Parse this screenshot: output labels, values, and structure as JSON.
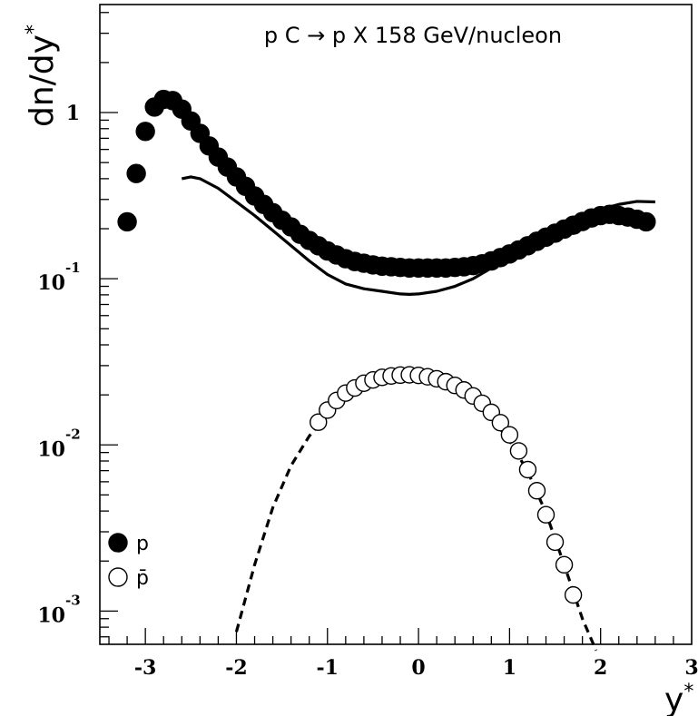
{
  "chart_data": {
    "type": "scatter",
    "title": "p C → p X 158 GeV/nucleon",
    "xlabel": "y*",
    "ylabel": "dn/dy*",
    "xlim": [
      -3.5,
      3.0
    ],
    "ylim_log10": [
      -3.2,
      0.65
    ],
    "yscale": "log",
    "x_ticks": [
      -3,
      -2,
      -1,
      0,
      1,
      2,
      3
    ],
    "y_major_ticks": [
      {
        "base": "10",
        "exp": "-3",
        "value": 0.001
      },
      {
        "base": "10",
        "exp": "-2",
        "value": 0.01
      },
      {
        "base": "10",
        "exp": "-1",
        "value": 0.1
      },
      {
        "base": "1",
        "exp": "",
        "value": 1
      }
    ],
    "legend": {
      "placement": "bottom-left",
      "entries": [
        {
          "label": "p",
          "marker": "filled-circle"
        },
        {
          "label": "p̄",
          "marker": "open-circle"
        }
      ]
    },
    "series": [
      {
        "name": "p",
        "marker": "filled-circle",
        "x": [
          -3.2,
          -3.1,
          -3.0,
          -2.9,
          -2.8,
          -2.7,
          -2.6,
          -2.5,
          -2.4,
          -2.3,
          -2.2,
          -2.1,
          -2.0,
          -1.9,
          -1.8,
          -1.7,
          -1.6,
          -1.5,
          -1.4,
          -1.3,
          -1.2,
          -1.1,
          -1.0,
          -0.9,
          -0.8,
          -0.7,
          -0.6,
          -0.5,
          -0.4,
          -0.3,
          -0.2,
          -0.1,
          0.0,
          0.1,
          0.2,
          0.3,
          0.4,
          0.5,
          0.6,
          0.7,
          0.8,
          0.9,
          1.0,
          1.1,
          1.2,
          1.3,
          1.4,
          1.5,
          1.6,
          1.7,
          1.8,
          1.9,
          2.0,
          2.1,
          2.2,
          2.3,
          2.4,
          2.5
        ],
        "y": [
          0.22,
          0.43,
          0.77,
          1.08,
          1.2,
          1.18,
          1.05,
          0.89,
          0.75,
          0.63,
          0.54,
          0.47,
          0.41,
          0.36,
          0.315,
          0.28,
          0.25,
          0.225,
          0.205,
          0.185,
          0.17,
          0.158,
          0.147,
          0.139,
          0.132,
          0.127,
          0.124,
          0.121,
          0.119,
          0.118,
          0.117,
          0.116,
          0.116,
          0.116,
          0.116,
          0.116,
          0.117,
          0.118,
          0.12,
          0.123,
          0.128,
          0.134,
          0.141,
          0.149,
          0.158,
          0.168,
          0.178,
          0.188,
          0.199,
          0.21,
          0.221,
          0.232,
          0.24,
          0.244,
          0.24,
          0.235,
          0.228,
          0.22
        ]
      },
      {
        "name": "p̄",
        "marker": "open-circle",
        "x": [
          -1.1,
          -1.0,
          -0.9,
          -0.8,
          -0.7,
          -0.6,
          -0.5,
          -0.4,
          -0.3,
          -0.2,
          -0.1,
          0.0,
          0.1,
          0.2,
          0.3,
          0.4,
          0.5,
          0.6,
          0.7,
          0.8,
          0.9,
          1.0,
          1.1,
          1.2,
          1.3,
          1.4,
          1.5,
          1.6,
          1.7
        ],
        "y": [
          0.0137,
          0.0162,
          0.0185,
          0.0205,
          0.022,
          0.0235,
          0.0246,
          0.0255,
          0.026,
          0.0263,
          0.0264,
          0.0262,
          0.0257,
          0.025,
          0.024,
          0.0228,
          0.0214,
          0.0197,
          0.0178,
          0.0157,
          0.0136,
          0.0115,
          0.0092,
          0.0071,
          0.0053,
          0.0038,
          0.0026,
          0.0019,
          0.00125
        ]
      },
      {
        "style": "solid-line",
        "x": [
          -2.6,
          -2.5,
          -2.4,
          -2.2,
          -2.0,
          -1.8,
          -1.6,
          -1.4,
          -1.2,
          -1.0,
          -0.8,
          -0.6,
          -0.4,
          -0.2,
          -0.1,
          0.0,
          0.2,
          0.4,
          0.6,
          0.8,
          1.0,
          1.2,
          1.4,
          1.6,
          1.8,
          2.0,
          2.2,
          2.4,
          2.6
        ],
        "y": [
          0.4,
          0.41,
          0.4,
          0.35,
          0.29,
          0.24,
          0.195,
          0.158,
          0.128,
          0.106,
          0.093,
          0.087,
          0.084,
          0.081,
          0.0805,
          0.081,
          0.084,
          0.09,
          0.1,
          0.116,
          0.136,
          0.16,
          0.186,
          0.212,
          0.238,
          0.262,
          0.28,
          0.292,
          0.29
        ]
      },
      {
        "style": "dashed-line",
        "x": [
          -2.0,
          -1.8,
          -1.6,
          -1.4,
          -1.2,
          -1.0,
          -0.8,
          -0.6,
          -0.4,
          -0.2,
          0.0,
          0.2,
          0.4,
          0.6,
          0.8,
          1.0,
          1.2,
          1.4,
          1.6,
          1.8,
          1.95
        ],
        "y": [
          0.00075,
          0.0019,
          0.0042,
          0.0075,
          0.0113,
          0.0152,
          0.019,
          0.0221,
          0.0243,
          0.0254,
          0.0253,
          0.024,
          0.0217,
          0.0185,
          0.0146,
          0.0106,
          0.0069,
          0.0039,
          0.0019,
          0.0009,
          0.00058
        ]
      }
    ]
  }
}
